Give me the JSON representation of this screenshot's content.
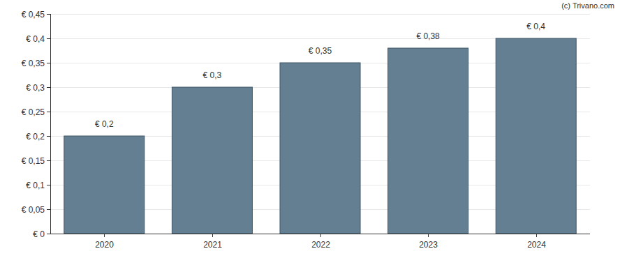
{
  "chart_data": {
    "type": "bar",
    "categories": [
      "2020",
      "2021",
      "2022",
      "2023",
      "2024"
    ],
    "values": [
      0.2,
      0.3,
      0.35,
      0.38,
      0.4
    ],
    "value_labels": [
      "€ 0,2",
      "€ 0,3",
      "€ 0,35",
      "€ 0,38",
      "€ 0,4"
    ],
    "data_labels": true,
    "color": "#647f91",
    "ylim": [
      0,
      0.45
    ],
    "yticks": [
      {
        "value": 0,
        "label": "€ 0"
      },
      {
        "value": 0.05,
        "label": "€ 0,05"
      },
      {
        "value": 0.1,
        "label": "€ 0,1"
      },
      {
        "value": 0.15,
        "label": "€ 0,15"
      },
      {
        "value": 0.2,
        "label": "€ 0,2"
      },
      {
        "value": 0.25,
        "label": "€ 0,25"
      },
      {
        "value": 0.3,
        "label": "€ 0,3"
      },
      {
        "value": 0.35,
        "label": "€ 0,35"
      },
      {
        "value": 0.4,
        "label": "€ 0,4"
      },
      {
        "value": 0.45,
        "label": "€ 0,45"
      }
    ],
    "grid": true,
    "annotations": [
      "(c) Trivano.com"
    ]
  }
}
